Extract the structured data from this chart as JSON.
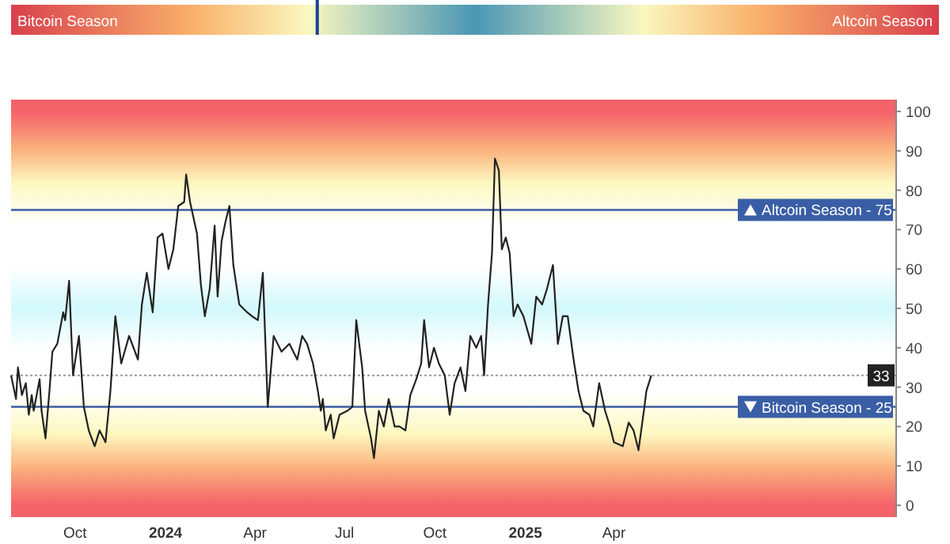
{
  "chart_data": {
    "type": "line",
    "xlim": [
      "2023-07-28",
      "2026-01-13"
    ],
    "xticks": [
      {
        "value": "2023-10-01",
        "label": "Oct"
      },
      {
        "value": "2024-01-01",
        "label": "2024"
      },
      {
        "value": "2024-04-01",
        "label": "Apr"
      },
      {
        "value": "2024-07-01",
        "label": "Jul"
      },
      {
        "value": "2024-10-01",
        "label": "Oct"
      },
      {
        "value": "2025-01-01",
        "label": "2025"
      },
      {
        "value": "2025-04-01",
        "label": "Apr"
      }
    ],
    "ylim": [
      -3,
      103
    ],
    "yticks": [
      0,
      10,
      20,
      30,
      40,
      50,
      60,
      70,
      80,
      90,
      100
    ],
    "grid": false,
    "annotations": [
      "Bitcoin Season",
      "Altcoin Season"
    ],
    "series": [
      {
        "color": "#222222",
        "x": [
          "2023-07-28",
          "2023-08-02",
          "2023-08-04",
          "2023-08-08",
          "2023-08-12",
          "2023-08-15",
          "2023-08-18",
          "2023-08-20",
          "2023-08-26",
          "2023-08-28",
          "2023-09-01",
          "2023-09-05",
          "2023-09-08",
          "2023-09-13",
          "2023-09-19",
          "2023-09-21",
          "2023-09-25",
          "2023-09-29",
          "2023-10-05",
          "2023-10-10",
          "2023-10-15",
          "2023-10-21",
          "2023-10-26",
          "2023-11-01",
          "2023-11-06",
          "2023-11-11",
          "2023-11-17",
          "2023-11-25",
          "2023-12-04",
          "2023-12-08",
          "2023-12-13",
          "2023-12-19",
          "2023-12-24",
          "2023-12-29",
          "2024-01-04",
          "2024-01-09",
          "2024-01-14",
          "2024-01-20",
          "2024-01-22",
          "2024-01-26",
          "2024-02-02",
          "2024-02-06",
          "2024-02-10",
          "2024-02-15",
          "2024-02-20",
          "2024-02-23",
          "2024-02-27",
          "2024-03-02",
          "2024-03-06",
          "2024-03-10",
          "2024-03-16",
          "2024-03-24",
          "2024-03-29",
          "2024-04-04",
          "2024-04-09",
          "2024-04-14",
          "2024-04-20",
          "2024-04-28",
          "2024-05-06",
          "2024-05-14",
          "2024-05-19",
          "2024-05-24",
          "2024-05-30",
          "2024-06-04",
          "2024-06-07",
          "2024-06-09",
          "2024-06-12",
          "2024-06-17",
          "2024-06-20",
          "2024-06-26",
          "2024-07-04",
          "2024-07-09",
          "2024-07-13",
          "2024-07-19",
          "2024-07-22",
          "2024-07-28",
          "2024-07-31",
          "2024-08-05",
          "2024-08-10",
          "2024-08-15",
          "2024-08-21",
          "2024-08-26",
          "2024-09-01",
          "2024-09-06",
          "2024-09-12",
          "2024-09-17",
          "2024-09-20",
          "2024-09-25",
          "2024-09-30",
          "2024-10-05",
          "2024-10-11",
          "2024-10-16",
          "2024-10-21",
          "2024-10-27",
          "2024-11-01",
          "2024-11-06",
          "2024-11-12",
          "2024-11-17",
          "2024-11-20",
          "2024-11-24",
          "2024-11-28",
          "2024-12-01",
          "2024-12-05",
          "2024-12-08",
          "2024-12-12",
          "2024-12-16",
          "2024-12-20",
          "2024-12-24",
          "2024-12-30",
          "2025-01-07",
          "2025-01-12",
          "2025-01-18",
          "2025-01-23",
          "2025-01-29",
          "2025-02-03",
          "2025-02-08",
          "2025-02-13",
          "2025-02-19",
          "2025-02-24",
          "2025-03-01",
          "2025-03-07",
          "2025-03-11",
          "2025-03-17",
          "2025-03-23",
          "2025-03-28",
          "2025-04-01",
          "2025-04-10",
          "2025-04-16",
          "2025-04-21",
          "2025-04-26",
          "2025-05-02",
          "2025-05-04",
          "2025-05-09"
        ],
        "values": [
          33,
          27,
          35,
          28,
          31,
          23,
          28,
          24,
          32,
          24,
          17,
          29,
          39,
          41,
          49,
          47,
          57,
          33,
          43,
          25,
          19,
          15,
          19,
          16,
          29,
          48,
          36,
          43,
          37,
          51,
          59,
          49,
          68,
          69,
          60,
          65,
          76,
          77,
          84,
          77,
          69,
          56,
          48,
          55,
          71,
          53,
          67,
          72,
          76,
          61,
          51,
          49,
          48,
          47,
          59,
          25,
          43,
          39,
          41,
          37,
          43,
          41,
          36,
          29,
          24,
          27,
          19,
          23,
          17,
          23,
          24,
          25,
          47,
          35,
          24,
          17,
          12,
          24,
          20,
          27,
          20,
          20,
          19,
          28,
          32,
          36,
          47,
          35,
          40,
          36,
          33,
          23,
          31,
          35,
          29,
          43,
          40,
          43,
          33,
          51,
          64,
          88,
          85,
          65,
          68,
          64,
          48,
          51,
          48,
          41,
          53,
          51,
          55,
          61,
          41,
          48,
          48,
          37,
          29,
          24,
          23,
          20,
          31,
          24,
          20,
          16,
          15,
          21,
          19,
          14,
          25,
          29,
          33
        ]
      }
    ],
    "ref_lines": [
      {
        "axis": "y",
        "value": 75,
        "label": "Altcoin Season - 75",
        "color": "#3a5ea6",
        "line_style": "solid"
      },
      {
        "axis": "y",
        "value": 25,
        "label": "Bitcoin Season - 25",
        "color": "#3a5ea6",
        "line_style": "solid"
      },
      {
        "axis": "y",
        "value": 33,
        "label": "33",
        "color": "#999999",
        "line_style": "dotted"
      }
    ]
  }
}
